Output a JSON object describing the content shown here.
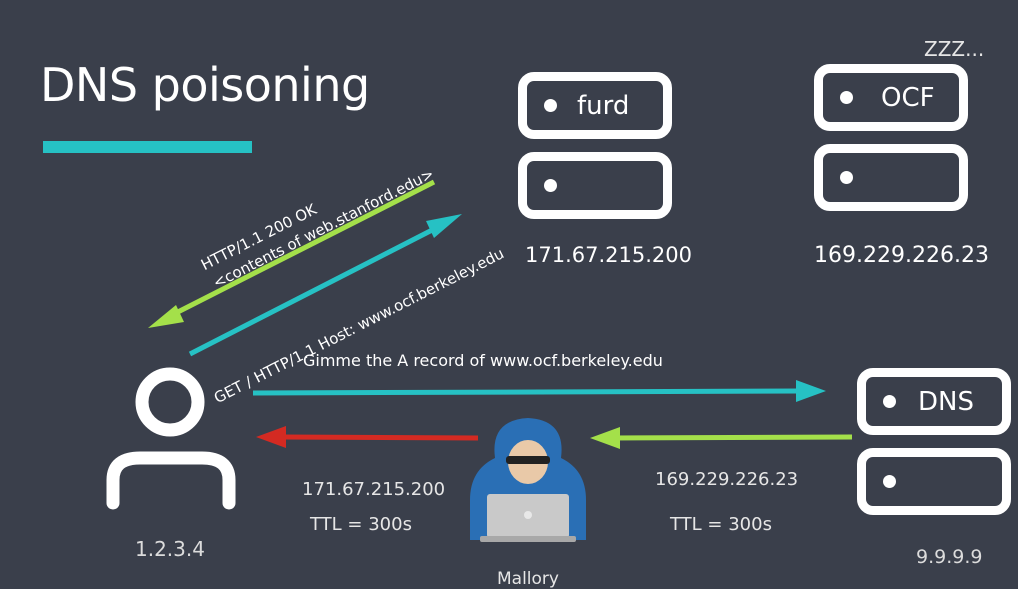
{
  "slide": {
    "title": "DNS poisoning",
    "accent_color": "#26c1c4"
  },
  "servers": {
    "furd": {
      "label": "furd",
      "ip": "171.67.215.200"
    },
    "ocf": {
      "label": "OCF",
      "ip": "169.229.226.23",
      "status": "ZZZ..."
    },
    "dns": {
      "label": "DNS",
      "ip": "9.9.9.9"
    }
  },
  "client": {
    "ip": "1.2.3.4",
    "icon": "user-icon"
  },
  "attacker": {
    "name": "Mallory",
    "icon": "hacker-icon"
  },
  "messages": {
    "http_response_line1": "HTTP/1.1 200 OK",
    "http_response_line2": "<contents of web.stanford.edu>",
    "http_request": "GET / HTTP/1.1  Host: www.ocf.berkeley.edu",
    "dns_query": "Gimme the A record of www.ocf.berkeley.edu",
    "dns_real_answer_ip": "169.229.226.23",
    "dns_real_answer_ttl": "TTL = 300s",
    "dns_spoofed_ip": "171.67.215.200",
    "dns_spoofed_ttl": "TTL = 300s"
  },
  "colors": {
    "background": "#3a3f4b",
    "teal_arrow": "#26c1c4",
    "green_arrow": "#a4e04a",
    "red_arrow": "#d42a22"
  }
}
